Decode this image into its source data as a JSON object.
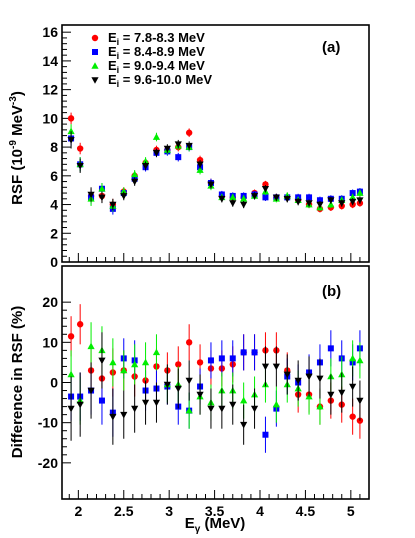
{
  "chart_data": [
    {
      "type": "scatter",
      "panel_label": "(a)",
      "ylabel": "RSF (10",
      "ylabel_exp": "-9",
      "ylabel_unit": " MeV",
      "ylabel_unit_exp": "-3",
      "ylabel_close": ")",
      "ylim": [
        0,
        16.5
      ],
      "yticks": [
        0,
        2,
        4,
        6,
        8,
        10,
        12,
        14,
        16
      ],
      "legend_position": "top-left",
      "series": [
        {
          "name_prefix": "E",
          "name_sub": "i",
          "name_rest": " = 7.8-8.3 MeV",
          "color": "#ff0000",
          "marker": "circle",
          "x": [
            1.92,
            2.02,
            2.14,
            2.26,
            2.38,
            2.5,
            2.62,
            2.74,
            2.86,
            2.98,
            3.1,
            3.22,
            3.34,
            3.46,
            3.58,
            3.7,
            3.82,
            3.94,
            4.06,
            4.18,
            4.3,
            4.42,
            4.54,
            4.66,
            4.78,
            4.9,
            5.02,
            5.1
          ],
          "y": [
            10.0,
            7.9,
            4.6,
            4.6,
            4.0,
            4.9,
            6.0,
            6.9,
            7.8,
            7.8,
            8.0,
            9.0,
            7.1,
            5.5,
            4.6,
            4.5,
            4.5,
            4.8,
            5.4,
            4.5,
            4.5,
            4.3,
            4.0,
            3.7,
            3.8,
            3.9,
            4.0,
            4.1
          ],
          "err": [
            0.4,
            0.4,
            0.5,
            0.4,
            0.4,
            0.3,
            0.3,
            0.3,
            0.3,
            0.3,
            0.3,
            0.3,
            0.3,
            0.3,
            0.25,
            0.25,
            0.25,
            0.25,
            0.25,
            0.25,
            0.25,
            0.25,
            0.25,
            0.25,
            0.25,
            0.25,
            0.25,
            0.25
          ]
        },
        {
          "name_prefix": "E",
          "name_sub": "i",
          "name_rest": " = 8.4-8.9 MeV",
          "color": "#0000ff",
          "marker": "square",
          "x": [
            1.92,
            2.02,
            2.14,
            2.26,
            2.38,
            2.5,
            2.62,
            2.74,
            2.86,
            2.98,
            3.1,
            3.22,
            3.34,
            3.46,
            3.58,
            3.7,
            3.82,
            3.94,
            4.06,
            4.18,
            4.3,
            4.42,
            4.54,
            4.66,
            4.78,
            4.9,
            5.02,
            5.1
          ],
          "y": [
            8.6,
            6.8,
            4.5,
            5.1,
            3.7,
            4.8,
            5.8,
            6.6,
            7.6,
            7.7,
            7.3,
            8.0,
            6.6,
            5.5,
            4.7,
            4.6,
            4.6,
            4.7,
            4.5,
            4.5,
            4.5,
            4.5,
            4.5,
            4.3,
            4.4,
            4.4,
            4.8,
            4.9
          ],
          "err": [
            0.5,
            0.5,
            0.5,
            0.4,
            0.4,
            0.3,
            0.3,
            0.3,
            0.3,
            0.3,
            0.3,
            0.3,
            0.3,
            0.3,
            0.25,
            0.25,
            0.25,
            0.25,
            0.25,
            0.25,
            0.25,
            0.25,
            0.25,
            0.25,
            0.25,
            0.25,
            0.25,
            0.25
          ]
        },
        {
          "name_prefix": "E",
          "name_sub": "i",
          "name_rest": " = 9.0-9.4 MeV",
          "color": "#00ee00",
          "marker": "triangle-up",
          "x": [
            1.92,
            2.02,
            2.14,
            2.26,
            2.38,
            2.5,
            2.62,
            2.74,
            2.86,
            2.98,
            3.1,
            3.22,
            3.34,
            3.46,
            3.58,
            3.7,
            3.82,
            3.94,
            4.06,
            4.18,
            4.3,
            4.42,
            4.54,
            4.66,
            4.78,
            4.9,
            5.02,
            5.1
          ],
          "y": [
            9.1,
            6.8,
            4.4,
            5.1,
            3.9,
            4.9,
            6.1,
            7.0,
            8.7,
            7.8,
            8.1,
            8.0,
            6.4,
            5.3,
            4.5,
            4.5,
            4.4,
            4.6,
            4.9,
            4.4,
            4.6,
            4.3,
            4.0,
            3.8,
            4.0,
            4.3,
            4.5,
            4.8
          ],
          "err": [
            0.5,
            0.5,
            0.5,
            0.4,
            0.4,
            0.3,
            0.3,
            0.3,
            0.3,
            0.3,
            0.3,
            0.3,
            0.3,
            0.3,
            0.25,
            0.25,
            0.25,
            0.25,
            0.25,
            0.25,
            0.25,
            0.25,
            0.25,
            0.25,
            0.25,
            0.25,
            0.25,
            0.25
          ]
        },
        {
          "name_prefix": "E",
          "name_sub": "i",
          "name_rest": " = 9.6-10.0 MeV",
          "color": "#000000",
          "marker": "triangle-down",
          "x": [
            1.92,
            2.02,
            2.14,
            2.26,
            2.38,
            2.5,
            2.62,
            2.74,
            2.86,
            2.98,
            3.1,
            3.22,
            3.34,
            3.46,
            3.58,
            3.7,
            3.82,
            3.94,
            4.06,
            4.18,
            4.3,
            4.42,
            4.54,
            4.66,
            4.78,
            4.9,
            5.02,
            5.1
          ],
          "y": [
            8.5,
            6.7,
            4.7,
            4.5,
            4.0,
            4.6,
            5.6,
            6.7,
            7.6,
            7.9,
            8.2,
            8.1,
            6.8,
            5.4,
            4.4,
            4.1,
            4.0,
            4.6,
            5.1,
            4.5,
            4.4,
            4.2,
            4.1,
            4.0,
            4.3,
            4.1,
            4.2,
            4.3
          ],
          "err": [
            0.6,
            0.5,
            0.5,
            0.4,
            0.4,
            0.3,
            0.3,
            0.3,
            0.3,
            0.3,
            0.3,
            0.3,
            0.3,
            0.3,
            0.25,
            0.25,
            0.25,
            0.25,
            0.25,
            0.25,
            0.25,
            0.25,
            0.25,
            0.25,
            0.25,
            0.25,
            0.25,
            0.25
          ]
        }
      ]
    },
    {
      "type": "scatter",
      "panel_label": "(b)",
      "ylabel": "Difference in RSF (%)",
      "ylim": [
        -29,
        29
      ],
      "yticks": [
        -20,
        -10,
        0,
        10,
        20
      ],
      "xlabel_prefix": "E",
      "xlabel_sub": "γ",
      "xlabel_rest": " (MeV)",
      "xlim": [
        1.82,
        5.2
      ],
      "xticks": [
        2,
        2.5,
        3,
        3.5,
        4,
        4.5,
        5
      ],
      "series": [
        {
          "color": "#ff0000",
          "marker": "circle",
          "x": [
            1.92,
            2.02,
            2.14,
            2.26,
            2.38,
            2.5,
            2.62,
            2.74,
            2.86,
            2.98,
            3.1,
            3.22,
            3.34,
            3.46,
            3.58,
            3.7,
            3.82,
            3.94,
            4.06,
            4.18,
            4.3,
            4.42,
            4.54,
            4.66,
            4.78,
            4.9,
            5.02,
            5.1
          ],
          "y": [
            11.5,
            14.5,
            3.0,
            1.0,
            2.5,
            3.0,
            1.5,
            0.5,
            4.0,
            3.0,
            4.5,
            10.0,
            5.0,
            3.5,
            3.5,
            4.5,
            7.5,
            7.5,
            8.0,
            8.0,
            3.0,
            -3.0,
            -3.0,
            -6.0,
            -4.5,
            -5.5,
            -8.5,
            -9.5
          ],
          "err": [
            5,
            5,
            6,
            6,
            6,
            5,
            5,
            5,
            4.5,
            4.5,
            4.5,
            4.5,
            4.5,
            4.5,
            4.5,
            4.5,
            4.5,
            4.5,
            4.5,
            4.5,
            4.5,
            4.5,
            4.5,
            4.5,
            4.5,
            4.5,
            4.5,
            4.5
          ]
        },
        {
          "color": "#0000ff",
          "marker": "square",
          "x": [
            1.92,
            2.02,
            2.14,
            2.26,
            2.38,
            2.5,
            2.62,
            2.74,
            2.86,
            2.98,
            3.1,
            3.22,
            3.34,
            3.46,
            3.58,
            3.7,
            3.82,
            3.94,
            4.06,
            4.18,
            4.3,
            4.42,
            4.54,
            4.66,
            4.78,
            4.9,
            5.02,
            5.1
          ],
          "y": [
            -3.5,
            -3.5,
            -2.0,
            -4.5,
            -7.5,
            6.0,
            5.5,
            -2.0,
            -1.5,
            -1.0,
            -6.0,
            -7.0,
            -1.0,
            5.5,
            6.0,
            6.0,
            7.5,
            7.5,
            -13.0,
            -6.5,
            1.5,
            0.0,
            2.5,
            5.0,
            8.5,
            6.0,
            5.0,
            8.5
          ],
          "err": [
            6,
            6,
            6,
            6,
            6,
            5,
            5,
            5,
            4.5,
            4.5,
            4.5,
            4.5,
            4.5,
            4.5,
            4.5,
            4.5,
            4.5,
            4.5,
            4.5,
            4.5,
            4.5,
            4.5,
            4.5,
            4.5,
            4.5,
            4.5,
            4.5,
            4.5
          ]
        },
        {
          "color": "#00ee00",
          "marker": "triangle-up",
          "x": [
            1.92,
            2.02,
            2.14,
            2.26,
            2.38,
            2.5,
            2.62,
            2.74,
            2.86,
            2.98,
            3.1,
            3.22,
            3.34,
            3.46,
            3.58,
            3.7,
            3.82,
            3.94,
            4.06,
            4.18,
            4.3,
            4.42,
            4.54,
            4.66,
            4.78,
            4.9,
            5.02,
            5.1
          ],
          "y": [
            2.0,
            -4.5,
            9.0,
            8.0,
            5.0,
            3.0,
            4.5,
            5.0,
            7.5,
            -0.5,
            -0.5,
            -7.0,
            -3.5,
            -5.0,
            -2.0,
            -2.0,
            -4.5,
            -3.0,
            -0.5,
            -5.5,
            -0.5,
            -1.5,
            -3.5,
            -6.0,
            1.5,
            2.0,
            6.0,
            5.5
          ],
          "err": [
            6,
            6,
            6,
            6,
            6,
            5,
            5,
            5,
            4.5,
            4.5,
            4.5,
            4.5,
            4.5,
            4.5,
            4.5,
            4.5,
            4.5,
            4.5,
            4.5,
            4.5,
            4.5,
            4.5,
            4.5,
            4.5,
            4.5,
            4.5,
            4.5,
            4.5
          ]
        },
        {
          "color": "#000000",
          "marker": "triangle-down",
          "x": [
            1.92,
            2.02,
            2.14,
            2.26,
            2.38,
            2.5,
            2.62,
            2.74,
            2.86,
            2.98,
            3.1,
            3.22,
            3.34,
            3.46,
            3.58,
            3.7,
            3.82,
            3.94,
            4.06,
            4.18,
            4.3,
            4.42,
            4.54,
            4.66,
            4.78,
            4.9,
            5.02,
            5.1
          ],
          "y": [
            -6.5,
            -5.5,
            -2.0,
            5.5,
            -8.5,
            -8.0,
            -6.5,
            -5.0,
            -5.0,
            -0.5,
            -1.5,
            0.5,
            -3.0,
            -6.5,
            -6.5,
            -5.5,
            -10.5,
            -6.5,
            4.0,
            4.0,
            2.0,
            0.5,
            1.5,
            1.0,
            -3.0,
            -2.5,
            -1.0,
            -4.5
          ],
          "err": [
            8,
            8,
            7,
            7,
            7,
            6,
            6,
            5.5,
            5,
            5,
            5,
            5,
            5,
            5,
            5,
            5,
            5,
            5,
            5,
            5,
            5,
            5,
            5,
            5,
            5,
            5,
            5,
            5
          ]
        }
      ]
    }
  ]
}
